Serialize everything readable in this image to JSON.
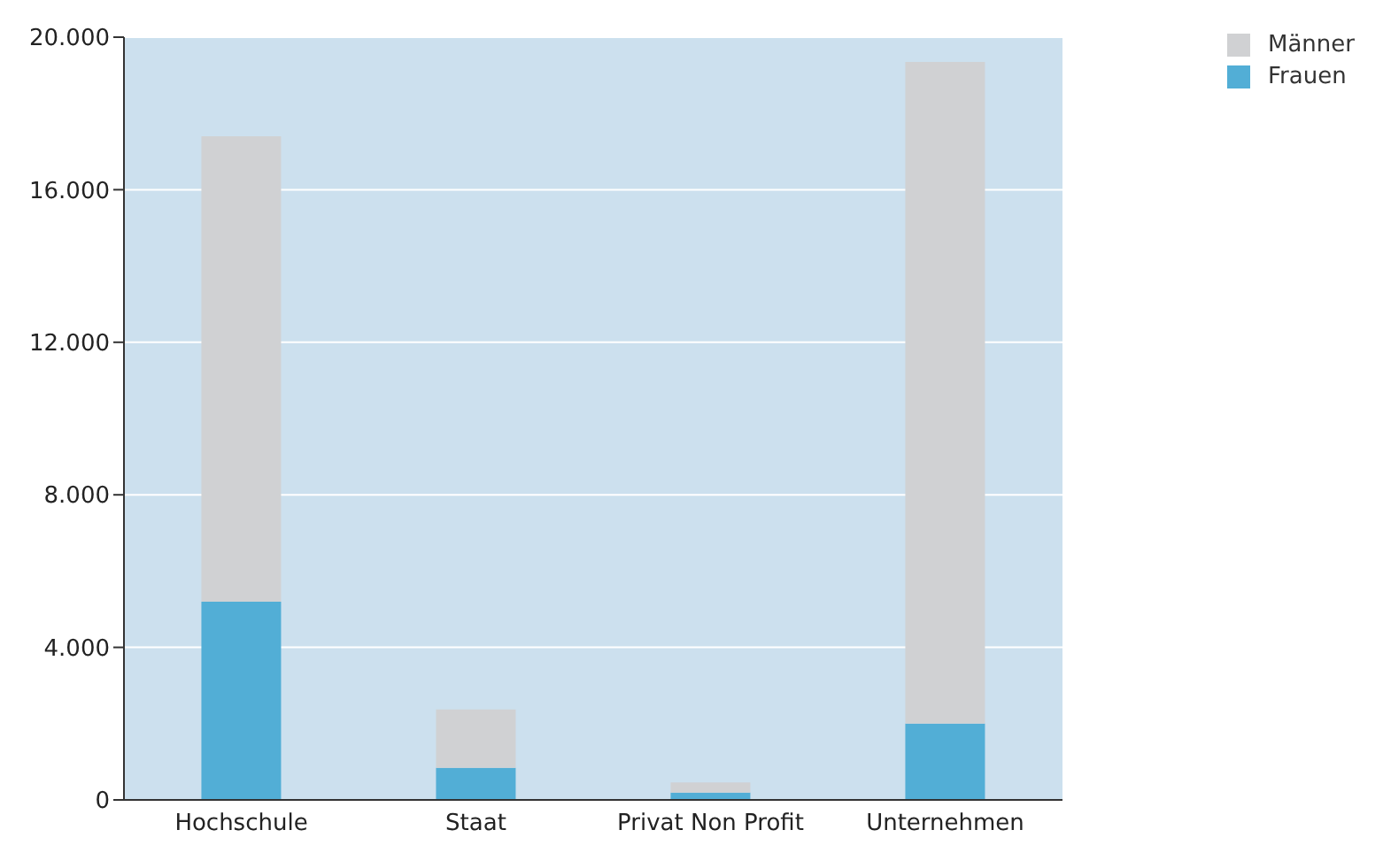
{
  "chart_data": {
    "type": "bar",
    "stacked": true,
    "categories": [
      "Hochschule",
      "Staat",
      "Privat Non Profit",
      "Unternehmen"
    ],
    "series": [
      {
        "name": "Frauen",
        "color": "#52aed6",
        "values": [
          5200,
          840,
          190,
          2000
        ]
      },
      {
        "name": "Männer",
        "color": "#d0d1d3",
        "values": [
          12200,
          1530,
          270,
          17350
        ]
      }
    ],
    "ylim": [
      0,
      20000
    ],
    "yticks": [
      {
        "value": 0,
        "label": "0"
      },
      {
        "value": 4000,
        "label": "4.000"
      },
      {
        "value": 8000,
        "label": "8.000"
      },
      {
        "value": 12000,
        "label": "12.000"
      },
      {
        "value": 16000,
        "label": "16.000"
      },
      {
        "value": 20000,
        "label": "20.000"
      }
    ],
    "grid": "y",
    "legend": "top right"
  }
}
